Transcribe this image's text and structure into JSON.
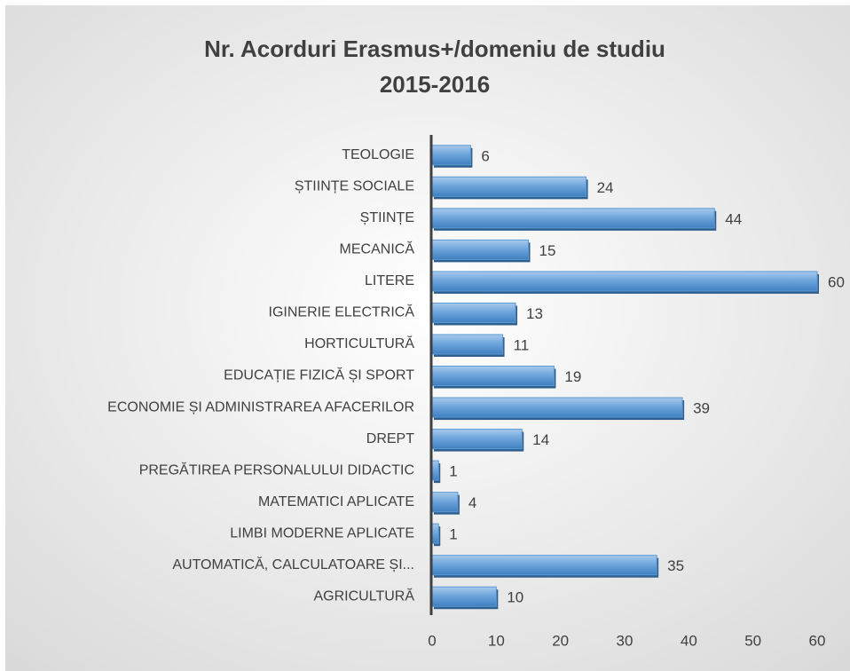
{
  "chart_data": {
    "type": "bar",
    "orientation": "horizontal",
    "title": [
      "Nr. Acorduri Erasmus+/domeniu  de studiu",
      "2015-2016"
    ],
    "categories": [
      "TEOLOGIE",
      "ȘTIINȚE SOCIALE",
      "ȘTIINȚE",
      "MECANICĂ",
      "LITERE",
      "IGINERIE ELECTRICĂ",
      "HORTICULTURĂ",
      "EDUCAȚIE FIZICĂ ȘI SPORT",
      "ECONOMIE ȘI ADMINISTRAREA AFACERILOR",
      "DREPT",
      "PREGĂTIREA PERSONALULUI DIDACTIC",
      "MATEMATICI APLICATE",
      "LIMBI MODERNE APLICATE",
      "AUTOMATICĂ, CALCULATOARE ȘI...",
      "AGRICULTURĂ"
    ],
    "values": [
      6,
      24,
      44,
      15,
      60,
      13,
      11,
      19,
      39,
      14,
      1,
      4,
      1,
      35,
      10
    ],
    "color": "#5b9bd5",
    "xlim": [
      0,
      60
    ],
    "xticks": [
      0,
      10,
      20,
      30,
      40,
      50,
      60
    ],
    "grid": false
  }
}
